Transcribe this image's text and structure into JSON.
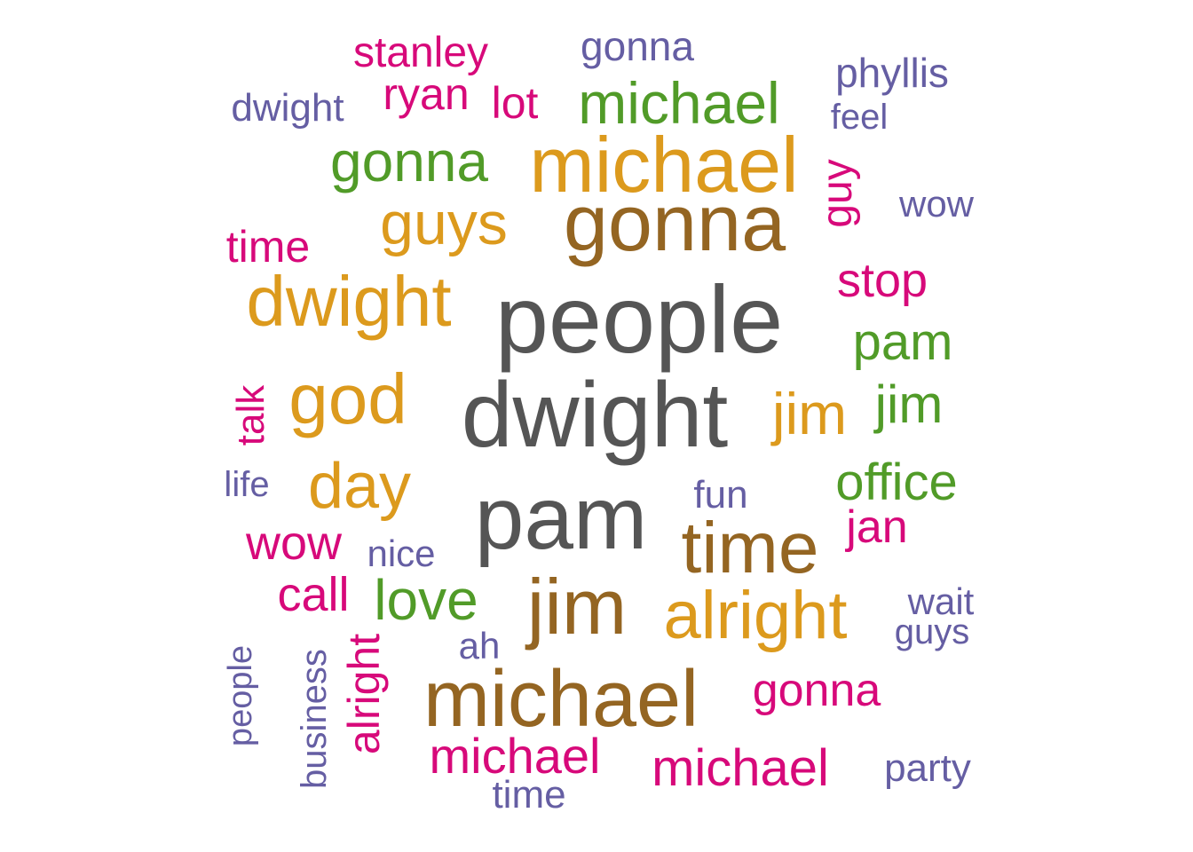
{
  "palette": {
    "dark_gray": "#555555",
    "brown": "#946522",
    "gold": "#dc9a1d",
    "green": "#519b28",
    "magenta": "#d7097a",
    "purple": "#655ea3"
  },
  "words": [
    {
      "text": "people",
      "color": "dark_gray",
      "rotated": false
    },
    {
      "text": "dwight",
      "color": "dark_gray",
      "rotated": false
    },
    {
      "text": "pam",
      "color": "dark_gray",
      "rotated": false
    },
    {
      "text": "gonna",
      "color": "brown",
      "rotated": false
    },
    {
      "text": "michael",
      "color": "brown",
      "rotated": false
    },
    {
      "text": "jim",
      "color": "brown",
      "rotated": false
    },
    {
      "text": "time",
      "color": "brown",
      "rotated": false
    },
    {
      "text": "michael",
      "color": "gold",
      "rotated": false
    },
    {
      "text": "dwight",
      "color": "gold",
      "rotated": false
    },
    {
      "text": "god",
      "color": "gold",
      "rotated": false
    },
    {
      "text": "guys",
      "color": "gold",
      "rotated": false
    },
    {
      "text": "day",
      "color": "gold",
      "rotated": false
    },
    {
      "text": "jim",
      "color": "gold",
      "rotated": false
    },
    {
      "text": "alright",
      "color": "gold",
      "rotated": false
    },
    {
      "text": "michael",
      "color": "green",
      "rotated": false
    },
    {
      "text": "gonna",
      "color": "green",
      "rotated": false
    },
    {
      "text": "pam",
      "color": "green",
      "rotated": false
    },
    {
      "text": "jim",
      "color": "green",
      "rotated": false
    },
    {
      "text": "office",
      "color": "green",
      "rotated": false
    },
    {
      "text": "love",
      "color": "green",
      "rotated": false
    },
    {
      "text": "stanley",
      "color": "magenta",
      "rotated": false
    },
    {
      "text": "ryan",
      "color": "magenta",
      "rotated": false
    },
    {
      "text": "lot",
      "color": "magenta",
      "rotated": false
    },
    {
      "text": "guy",
      "color": "magenta",
      "rotated": true
    },
    {
      "text": "time",
      "color": "magenta",
      "rotated": false
    },
    {
      "text": "stop",
      "color": "magenta",
      "rotated": false
    },
    {
      "text": "talk",
      "color": "magenta",
      "rotated": true
    },
    {
      "text": "wow",
      "color": "magenta",
      "rotated": false
    },
    {
      "text": "jan",
      "color": "magenta",
      "rotated": false
    },
    {
      "text": "call",
      "color": "magenta",
      "rotated": false
    },
    {
      "text": "alright",
      "color": "magenta",
      "rotated": true
    },
    {
      "text": "gonna",
      "color": "magenta",
      "rotated": false
    },
    {
      "text": "michael",
      "color": "magenta",
      "rotated": false
    },
    {
      "text": "michael",
      "color": "magenta",
      "rotated": false
    },
    {
      "text": "gonna",
      "color": "purple",
      "rotated": false
    },
    {
      "text": "phyllis",
      "color": "purple",
      "rotated": false
    },
    {
      "text": "dwight",
      "color": "purple",
      "rotated": false
    },
    {
      "text": "feel",
      "color": "purple",
      "rotated": false
    },
    {
      "text": "wow",
      "color": "purple",
      "rotated": false
    },
    {
      "text": "life",
      "color": "purple",
      "rotated": false
    },
    {
      "text": "fun",
      "color": "purple",
      "rotated": false
    },
    {
      "text": "nice",
      "color": "purple",
      "rotated": false
    },
    {
      "text": "wait",
      "color": "purple",
      "rotated": false
    },
    {
      "text": "guys",
      "color": "purple",
      "rotated": false
    },
    {
      "text": "ah",
      "color": "purple",
      "rotated": false
    },
    {
      "text": "people",
      "color": "purple",
      "rotated": true
    },
    {
      "text": "business",
      "color": "purple",
      "rotated": true
    },
    {
      "text": "party",
      "color": "purple",
      "rotated": false
    },
    {
      "text": "time",
      "color": "purple",
      "rotated": false
    }
  ]
}
